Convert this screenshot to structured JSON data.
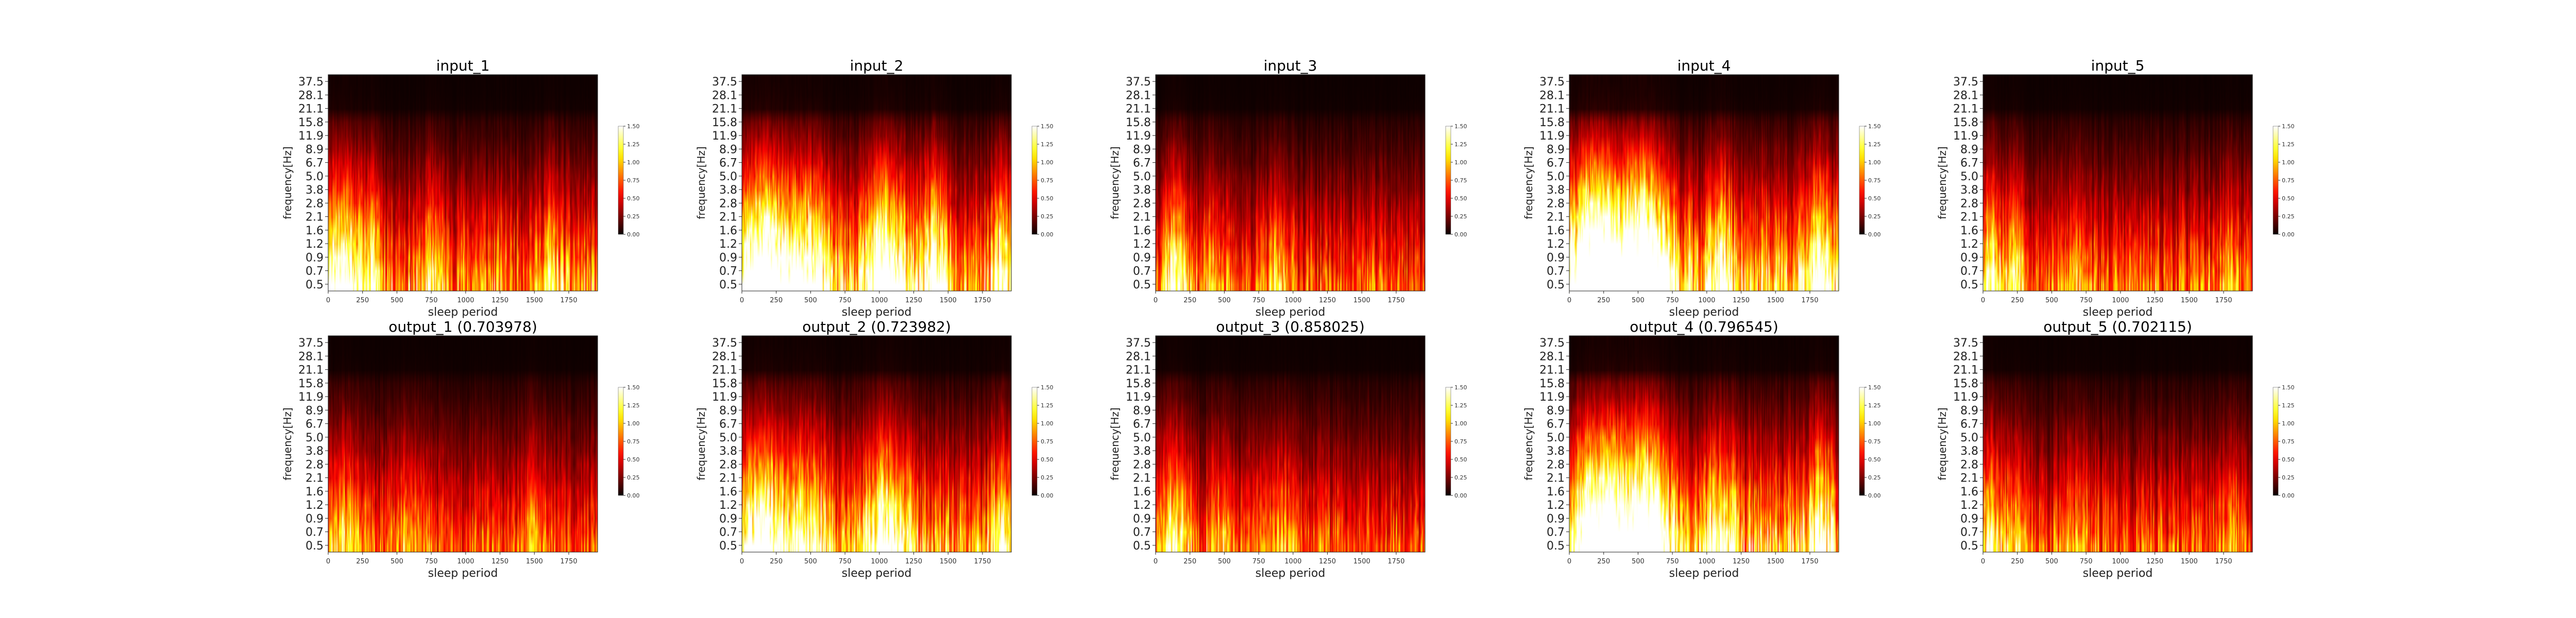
{
  "chart_data": [
    {
      "type": "heatmap",
      "title": "input_1",
      "xlabel": "sleep period",
      "ylabel": "frequency[Hz]",
      "seed": 11,
      "hot": [
        [
          90,
          180,
          1.1
        ],
        [
          330,
          60,
          0.55
        ],
        [
          760,
          60,
          0.5
        ],
        [
          1620,
          70,
          0.45
        ]
      ],
      "damp": 0.9,
      "xlim": [
        0,
        1960
      ],
      "yticks": [
        "0.5",
        "0.7",
        "0.9",
        "1.2",
        "1.6",
        "2.1",
        "2.8",
        "3.8",
        "5.0",
        "6.7",
        "8.9",
        "11.9",
        "15.8",
        "21.1",
        "28.1",
        "37.5"
      ],
      "xticks": [
        0,
        250,
        500,
        750,
        1000,
        1250,
        1500,
        1750
      ],
      "colorbar": {
        "ticks": [
          "0.00",
          "0.25",
          "0.50",
          "0.75",
          "1.00",
          "1.25",
          "1.50"
        ],
        "min": 0,
        "max": 1.5
      }
    },
    {
      "type": "heatmap",
      "title": "input_2",
      "xlabel": "sleep period",
      "ylabel": "frequency[Hz]",
      "seed": 23,
      "hot": [
        [
          160,
          180,
          1.3
        ],
        [
          480,
          140,
          0.9
        ],
        [
          1050,
          150,
          1.0
        ],
        [
          1400,
          100,
          0.7
        ],
        [
          1900,
          60,
          0.6
        ]
      ],
      "damp": 1.1,
      "xlim": [
        0,
        1960
      ],
      "yticks": [
        "0.5",
        "0.7",
        "0.9",
        "1.2",
        "1.6",
        "2.1",
        "2.8",
        "3.8",
        "5.0",
        "6.7",
        "8.9",
        "11.9",
        "15.8",
        "21.1",
        "28.1",
        "37.5"
      ],
      "xticks": [
        0,
        250,
        500,
        750,
        1000,
        1250,
        1500,
        1750
      ],
      "colorbar": {
        "ticks": [
          "0.00",
          "0.25",
          "0.50",
          "0.75",
          "1.00",
          "1.25",
          "1.50"
        ],
        "min": 0,
        "max": 1.5
      }
    },
    {
      "type": "heatmap",
      "title": "input_3",
      "xlabel": "sleep period",
      "ylabel": "frequency[Hz]",
      "seed": 37,
      "hot": [
        [
          140,
          90,
          1.2
        ],
        [
          420,
          80,
          0.5
        ],
        [
          900,
          100,
          0.45
        ]
      ],
      "damp": 0.75,
      "xlim": [
        0,
        1960
      ],
      "yticks": [
        "0.5",
        "0.7",
        "0.9",
        "1.2",
        "1.6",
        "2.1",
        "2.8",
        "3.8",
        "5.0",
        "6.7",
        "8.9",
        "11.9",
        "15.8",
        "21.1",
        "28.1",
        "37.5"
      ],
      "xticks": [
        0,
        250,
        500,
        750,
        1000,
        1250,
        1500,
        1750
      ],
      "colorbar": {
        "ticks": [
          "0.00",
          "0.25",
          "0.50",
          "0.75",
          "1.00",
          "1.25",
          "1.50"
        ],
        "min": 0,
        "max": 1.5
      }
    },
    {
      "type": "heatmap",
      "title": "input_4",
      "xlabel": "sleep period",
      "ylabel": "frequency[Hz]",
      "seed": 41,
      "hot": [
        [
          200,
          200,
          1.6
        ],
        [
          560,
          160,
          1.5
        ],
        [
          1100,
          90,
          0.6
        ],
        [
          1820,
          80,
          0.8
        ]
      ],
      "damp": 1.15,
      "xlim": [
        0,
        1960
      ],
      "yticks": [
        "0.5",
        "0.7",
        "0.9",
        "1.2",
        "1.6",
        "2.1",
        "2.8",
        "3.8",
        "5.0",
        "6.7",
        "8.9",
        "11.9",
        "15.8",
        "21.1",
        "28.1",
        "37.5"
      ],
      "xticks": [
        0,
        250,
        500,
        750,
        1000,
        1250,
        1500,
        1750
      ],
      "colorbar": {
        "ticks": [
          "0.00",
          "0.25",
          "0.50",
          "0.75",
          "1.00",
          "1.25",
          "1.50"
        ],
        "min": 0,
        "max": 1.5
      }
    },
    {
      "type": "heatmap",
      "title": "input_5",
      "xlabel": "sleep period",
      "ylabel": "frequency[Hz]",
      "seed": 53,
      "hot": [
        [
          60,
          80,
          1.0
        ],
        [
          240,
          70,
          0.8
        ],
        [
          700,
          80,
          0.4
        ],
        [
          1800,
          60,
          0.45
        ]
      ],
      "damp": 0.8,
      "xlim": [
        0,
        1960
      ],
      "yticks": [
        "0.5",
        "0.7",
        "0.9",
        "1.2",
        "1.6",
        "2.1",
        "2.8",
        "3.8",
        "5.0",
        "6.7",
        "8.9",
        "11.9",
        "15.8",
        "21.1",
        "28.1",
        "37.5"
      ],
      "xticks": [
        0,
        250,
        500,
        750,
        1000,
        1250,
        1500,
        1750
      ],
      "colorbar": {
        "ticks": [
          "0.00",
          "0.25",
          "0.50",
          "0.75",
          "1.00",
          "1.25",
          "1.50"
        ],
        "min": 0,
        "max": 1.5
      }
    },
    {
      "type": "heatmap",
      "title": "output_1 (0.703978)",
      "xlabel": "sleep period",
      "ylabel": "frequency[Hz]",
      "seed": 61,
      "hot": [
        [
          120,
          140,
          0.7
        ],
        [
          600,
          120,
          0.45
        ],
        [
          1500,
          100,
          0.4
        ]
      ],
      "damp": 0.7,
      "xlim": [
        0,
        1960
      ],
      "yticks": [
        "0.5",
        "0.7",
        "0.9",
        "1.2",
        "1.6",
        "2.1",
        "2.8",
        "3.8",
        "5.0",
        "6.7",
        "8.9",
        "11.9",
        "15.8",
        "21.1",
        "28.1",
        "37.5"
      ],
      "xticks": [
        0,
        250,
        500,
        750,
        1000,
        1250,
        1500,
        1750
      ],
      "colorbar": {
        "ticks": [
          "0.00",
          "0.25",
          "0.50",
          "0.75",
          "1.00",
          "1.25",
          "1.50"
        ],
        "min": 0,
        "max": 1.5
      }
    },
    {
      "type": "heatmap",
      "title": "output_2 (0.723982)",
      "xlabel": "sleep period",
      "ylabel": "frequency[Hz]",
      "seed": 71,
      "hot": [
        [
          160,
          180,
          1.0
        ],
        [
          500,
          140,
          0.75
        ],
        [
          1050,
          160,
          0.9
        ],
        [
          1880,
          70,
          0.6
        ]
      ],
      "damp": 0.95,
      "xlim": [
        0,
        1960
      ],
      "yticks": [
        "0.5",
        "0.7",
        "0.9",
        "1.2",
        "1.6",
        "2.1",
        "2.8",
        "3.8",
        "5.0",
        "6.7",
        "8.9",
        "11.9",
        "15.8",
        "21.1",
        "28.1",
        "37.5"
      ],
      "xticks": [
        0,
        250,
        500,
        750,
        1000,
        1250,
        1500,
        1750
      ],
      "colorbar": {
        "ticks": [
          "0.00",
          "0.25",
          "0.50",
          "0.75",
          "1.00",
          "1.25",
          "1.50"
        ],
        "min": 0,
        "max": 1.5
      }
    },
    {
      "type": "heatmap",
      "title": "output_3 (0.858025)",
      "xlabel": "sleep period",
      "ylabel": "frequency[Hz]",
      "seed": 83,
      "hot": [
        [
          140,
          100,
          0.95
        ],
        [
          450,
          80,
          0.45
        ],
        [
          900,
          100,
          0.4
        ]
      ],
      "damp": 0.75,
      "xlim": [
        0,
        1960
      ],
      "yticks": [
        "0.5",
        "0.7",
        "0.9",
        "1.2",
        "1.6",
        "2.1",
        "2.8",
        "3.8",
        "5.0",
        "6.7",
        "8.9",
        "11.9",
        "15.8",
        "21.1",
        "28.1",
        "37.5"
      ],
      "xticks": [
        0,
        250,
        500,
        750,
        1000,
        1250,
        1500,
        1750
      ],
      "colorbar": {
        "ticks": [
          "0.00",
          "0.25",
          "0.50",
          "0.75",
          "1.00",
          "1.25",
          "1.50"
        ],
        "min": 0,
        "max": 1.5
      }
    },
    {
      "type": "heatmap",
      "title": "output_4 (0.796545)",
      "xlabel": "sleep period",
      "ylabel": "frequency[Hz]",
      "seed": 97,
      "hot": [
        [
          220,
          200,
          1.5
        ],
        [
          560,
          160,
          1.4
        ],
        [
          1100,
          100,
          0.6
        ],
        [
          1820,
          80,
          0.7
        ]
      ],
      "damp": 1.05,
      "xlim": [
        0,
        1960
      ],
      "yticks": [
        "0.5",
        "0.7",
        "0.9",
        "1.2",
        "1.6",
        "2.1",
        "2.8",
        "3.8",
        "5.0",
        "6.7",
        "8.9",
        "11.9",
        "15.8",
        "21.1",
        "28.1",
        "37.5"
      ],
      "xticks": [
        0,
        250,
        500,
        750,
        1000,
        1250,
        1500,
        1750
      ],
      "colorbar": {
        "ticks": [
          "0.00",
          "0.25",
          "0.50",
          "0.75",
          "1.00",
          "1.25",
          "1.50"
        ],
        "min": 0,
        "max": 1.5
      }
    },
    {
      "type": "heatmap",
      "title": "output_5 (0.702115)",
      "xlabel": "sleep period",
      "ylabel": "frequency[Hz]",
      "seed": 107,
      "hot": [
        [
          60,
          90,
          0.8
        ],
        [
          250,
          80,
          0.65
        ],
        [
          700,
          90,
          0.35
        ],
        [
          1800,
          70,
          0.4
        ]
      ],
      "damp": 0.75,
      "xlim": [
        0,
        1960
      ],
      "yticks": [
        "0.5",
        "0.7",
        "0.9",
        "1.2",
        "1.6",
        "2.1",
        "2.8",
        "3.8",
        "5.0",
        "6.7",
        "8.9",
        "11.9",
        "15.8",
        "21.1",
        "28.1",
        "37.5"
      ],
      "xticks": [
        0,
        250,
        500,
        750,
        1000,
        1250,
        1500,
        1750
      ],
      "colorbar": {
        "ticks": [
          "0.00",
          "0.25",
          "0.50",
          "0.75",
          "1.00",
          "1.25",
          "1.50"
        ],
        "min": 0,
        "max": 1.5
      }
    }
  ],
  "colormap": "hot"
}
